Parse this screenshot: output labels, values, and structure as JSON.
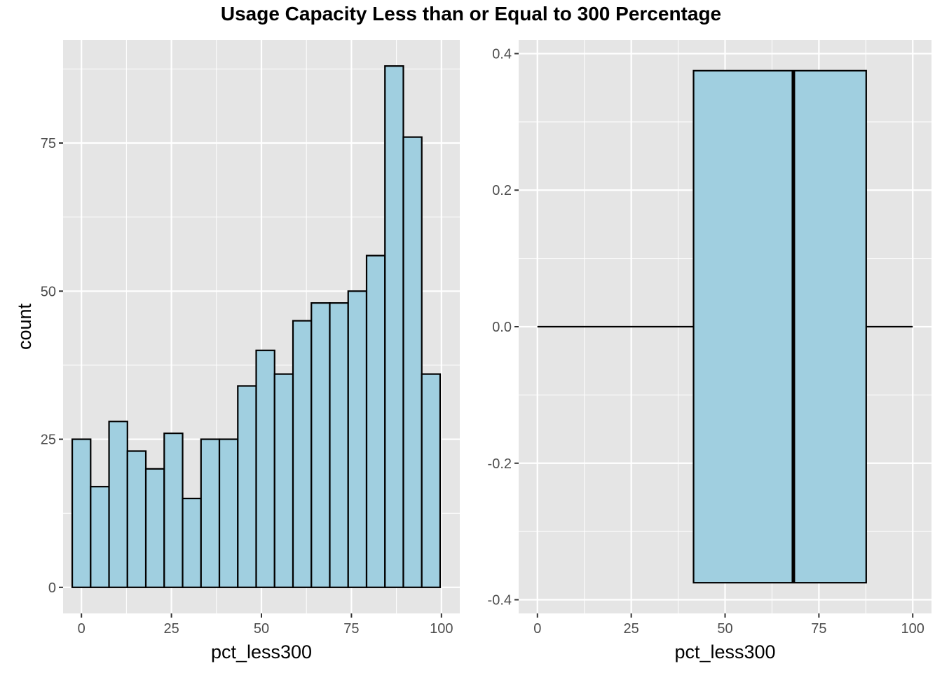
{
  "title": "Usage Capacity Less than or Equal to 300 Percentage",
  "colors": {
    "panel_background": "#e5e5e5",
    "grid": "#ffffff",
    "fill": "#a0cfe0",
    "stroke": "#000000",
    "tick_text": "#4d4d4d"
  },
  "chart_data": [
    {
      "type": "bar",
      "subtype": "histogram",
      "xlabel": "pct_less300",
      "ylabel": "count",
      "xlim": [
        -5.1,
        105.1
      ],
      "ylim": [
        -4.4,
        92.4
      ],
      "x_ticks": [
        0,
        25,
        50,
        75,
        100
      ],
      "x_tick_labels": [
        "0",
        "25",
        "50",
        "75",
        "100"
      ],
      "y_ticks": [
        0,
        25,
        50,
        75
      ],
      "y_tick_labels": [
        "0",
        "25",
        "50",
        "75"
      ],
      "bin_width": 5.11,
      "bin_centers": [
        0.0,
        5.11,
        10.22,
        15.33,
        20.44,
        25.55,
        30.66,
        35.77,
        40.88,
        45.99,
        51.1,
        56.21,
        61.32,
        66.43,
        71.54,
        76.65,
        81.76,
        86.87,
        91.98,
        97.09,
        102.2
      ],
      "values": [
        25,
        17,
        28,
        23,
        20,
        26,
        15,
        25,
        25,
        34,
        40,
        36,
        45,
        48,
        48,
        50,
        56,
        88,
        76,
        36,
        0
      ],
      "grid": true
    },
    {
      "type": "boxplot",
      "xlabel": "pct_less300",
      "ylabel": "",
      "xlim": [
        -5,
        105
      ],
      "ylim": [
        -0.42,
        0.42
      ],
      "x_ticks": [
        0,
        25,
        50,
        75,
        100
      ],
      "x_tick_labels": [
        "0",
        "25",
        "50",
        "75",
        "100"
      ],
      "y_ticks": [
        -0.4,
        -0.2,
        0.0,
        0.2,
        0.4
      ],
      "y_tick_labels": [
        "-0.4",
        "-0.2",
        "0.0",
        "0.2",
        "0.4"
      ],
      "box": {
        "whisker_low": 0,
        "q1": 41.6,
        "median": 68.2,
        "q3": 87.6,
        "whisker_high": 100,
        "box_half_height": 0.375
      },
      "grid": true
    }
  ]
}
